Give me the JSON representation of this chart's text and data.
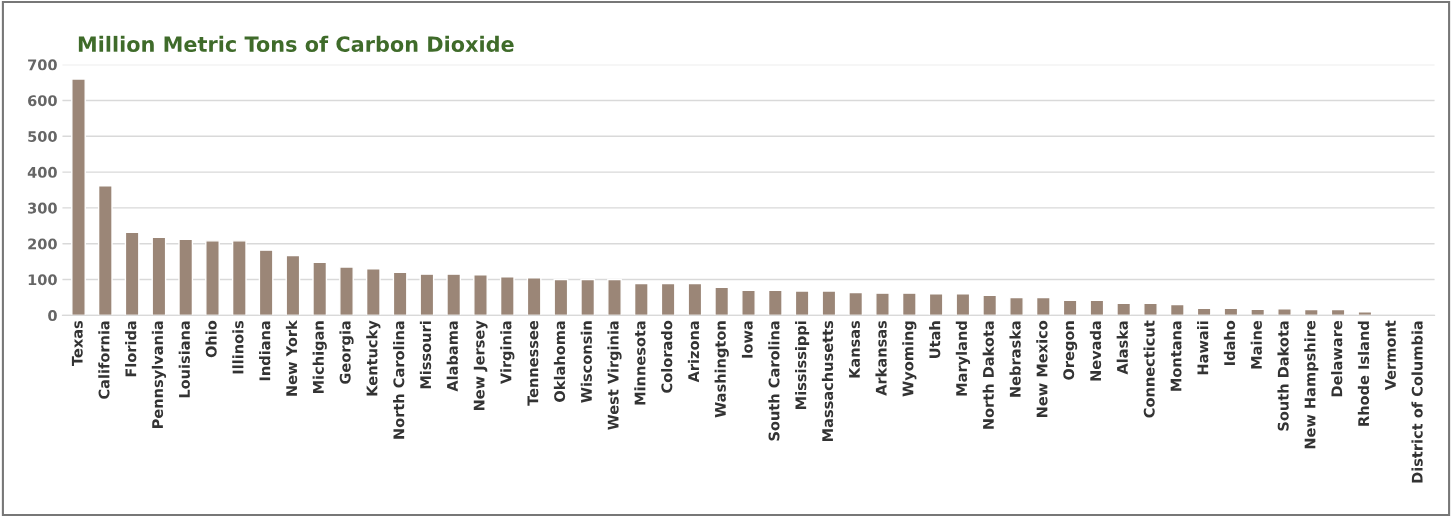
{
  "chart_data": {
    "type": "bar",
    "title": "Million Metric Tons of Carbon Dioxide",
    "categories": [
      "Texas",
      "California",
      "Florida",
      "Pennsylvania",
      "Louisiana",
      "Ohio",
      "Illinois",
      "Indiana",
      "New York",
      "Michigan",
      "Georgia",
      "Kentucky",
      "North Carolina",
      "Missouri",
      "Alabama",
      "New Jersey",
      "Virginia",
      "Tennessee",
      "Oklahoma",
      "Wisconsin",
      "West Virginia",
      "Minnesota",
      "Colorado",
      "Arizona",
      "Washington",
      "Iowa",
      "South Carolina",
      "Mississippi",
      "Massachusetts",
      "Kansas",
      "Arkansas",
      "Wyoming",
      "Utah",
      "Maryland",
      "North Dakota",
      "Nebraska",
      "New Mexico",
      "Oregon",
      "Nevada",
      "Alaska",
      "Connecticut",
      "Montana",
      "Hawaii",
      "Idaho",
      "Maine",
      "South Dakota",
      "New Hampshire",
      "Delaware",
      "Rhode Island",
      "Vermont",
      "District of Columbia"
    ],
    "values": [
      660,
      362,
      232,
      218,
      212,
      208,
      208,
      182,
      167,
      148,
      135,
      130,
      120,
      115,
      115,
      113,
      108,
      105,
      100,
      100,
      100,
      89,
      89,
      89,
      78,
      70,
      70,
      68,
      68,
      64,
      62,
      62,
      60,
      60,
      56,
      50,
      50,
      42,
      42,
      34,
      34,
      30,
      20,
      20,
      17,
      18,
      16,
      16,
      10,
      null,
      null
    ],
    "color": "#9b8677",
    "ylim": [
      0,
      700
    ],
    "yticks": [
      0,
      100,
      200,
      300,
      400,
      500,
      600,
      700
    ],
    "grid": "y"
  }
}
